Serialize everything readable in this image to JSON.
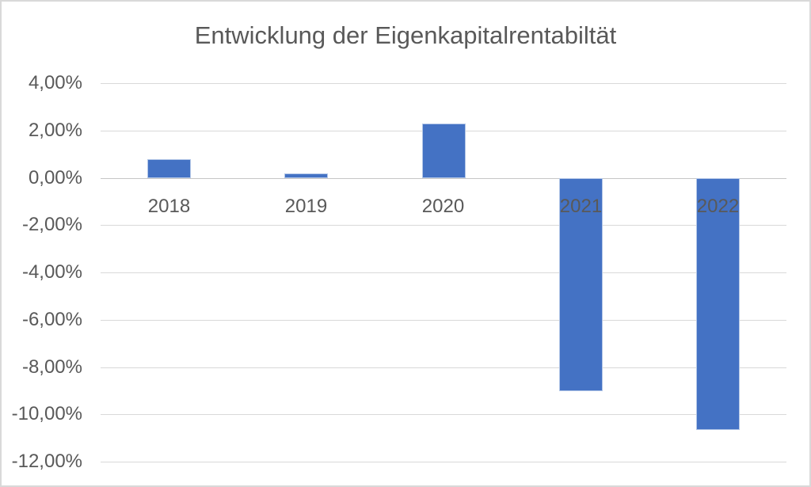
{
  "chart_data": {
    "type": "bar",
    "title": "Entwicklung der Eigenkapitalrentabiltät",
    "categories": [
      "2018",
      "2019",
      "2020",
      "2021",
      "2022"
    ],
    "values": [
      0.8,
      0.2,
      2.3,
      -9.0,
      -10.65
    ],
    "value_unit": "%",
    "xlabel": "",
    "ylabel": "",
    "ylim": [
      -12,
      4
    ],
    "y_tick_step": 2,
    "y_ticks": [
      {
        "value": 4,
        "label": "4,00%"
      },
      {
        "value": 2,
        "label": "2,00%"
      },
      {
        "value": 0,
        "label": "0,00%"
      },
      {
        "value": -2,
        "label": "-2,00%"
      },
      {
        "value": -4,
        "label": "-4,00%"
      },
      {
        "value": -6,
        "label": "-6,00%"
      },
      {
        "value": -8,
        "label": "-8,00%"
      },
      {
        "value": -10,
        "label": "-10,00%"
      },
      {
        "value": -12,
        "label": "-12,00%"
      }
    ],
    "grid": true,
    "legend": false,
    "colors": {
      "bar_fill": "#4472c4",
      "bar_border": "#b4c7e7",
      "gridline": "#d9d9d9",
      "zero_axis_line": "#c6c6c6",
      "text": "#595959",
      "background": "#ffffff",
      "frame_border": "#d9d9d9"
    }
  }
}
